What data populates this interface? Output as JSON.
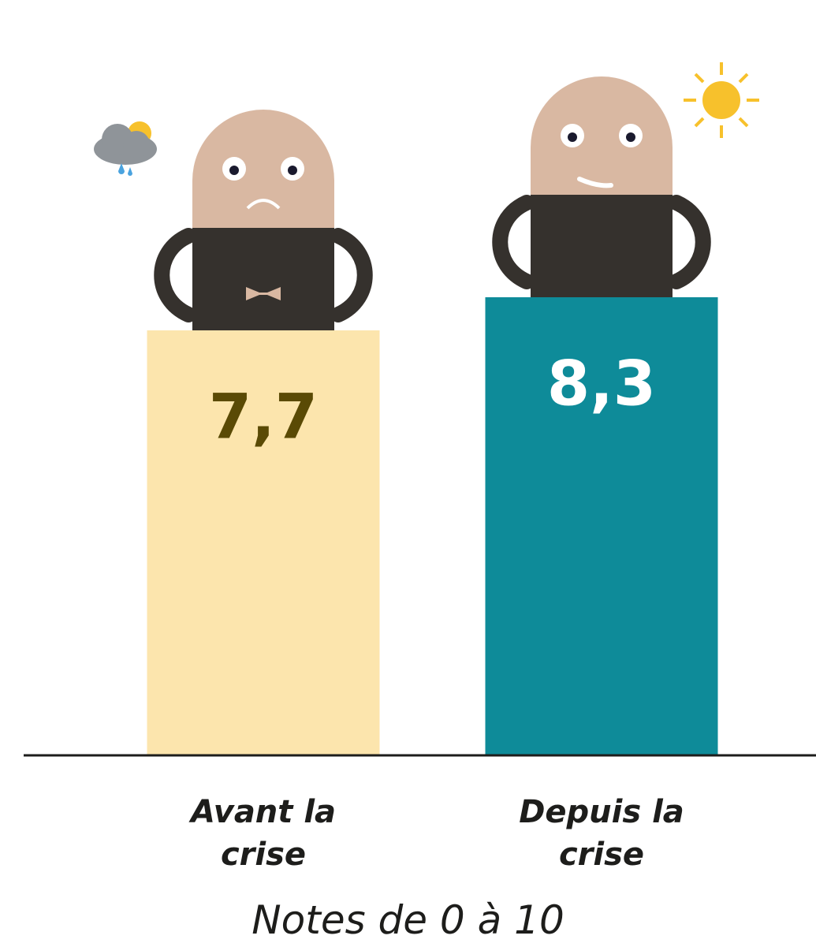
{
  "chart_data": {
    "type": "bar",
    "categories": [
      "Avant la crise",
      "Depuis la crise"
    ],
    "values": [
      7.7,
      8.3
    ],
    "value_labels": [
      "7,7",
      "8,3"
    ],
    "colors": [
      "#fce5ad",
      "#0e8b99"
    ],
    "label_colors": [
      "#5a4a05",
      "#ffffff"
    ],
    "caption": "Notes de 0 à 10"
  }
}
